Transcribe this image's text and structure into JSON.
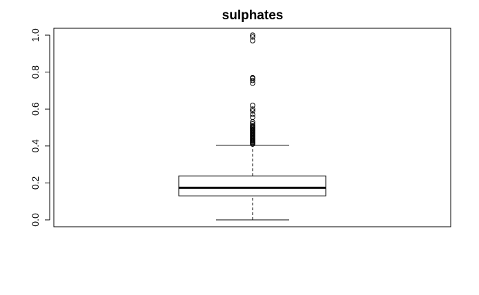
{
  "chart_data": {
    "type": "boxplot",
    "title": "sulphates",
    "xlabel": "",
    "ylabel": "",
    "ylim": [
      0,
      1
    ],
    "yticks": [
      "0.0",
      "0.2",
      "0.4",
      "0.6",
      "0.8",
      "1.0"
    ],
    "grid": false,
    "box": {
      "whisker_low": 0.0,
      "q1": 0.13,
      "median": 0.174,
      "q3": 0.238,
      "whisker_high": 0.404
    },
    "outliers": [
      0.41,
      0.415,
      0.42,
      0.425,
      0.43,
      0.435,
      0.44,
      0.445,
      0.45,
      0.455,
      0.46,
      0.465,
      0.47,
      0.475,
      0.48,
      0.485,
      0.49,
      0.495,
      0.5,
      0.505,
      0.51,
      0.52,
      0.53,
      0.555,
      0.57,
      0.59,
      0.6,
      0.62,
      0.74,
      0.755,
      0.765,
      0.77,
      0.97,
      0.99,
      1.0
    ],
    "colors": {
      "stroke": "#000000",
      "fill": "#ffffff"
    }
  }
}
